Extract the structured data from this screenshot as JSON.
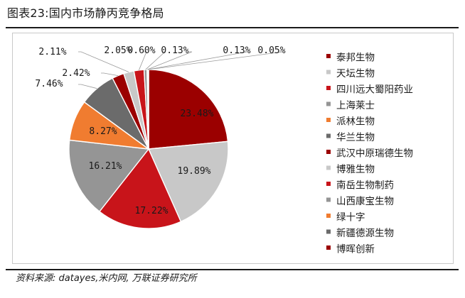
{
  "figure_title": "图表23:国内市场静丙竞争格局",
  "source_note": "资料来源: datayes,米内网, 万联证券研究所",
  "chart_data": {
    "type": "pie",
    "title": "",
    "legend_position": "right",
    "unit": "%",
    "slices": [
      {
        "name": "泰邦生物",
        "value": 23.48,
        "label": "23.48%",
        "color": "#9b0000"
      },
      {
        "name": "天坛生物",
        "value": 19.89,
        "label": "19.89%",
        "color": "#c8c8c8"
      },
      {
        "name": "四川远大蜀阳药业",
        "value": 17.22,
        "label": "17.22%",
        "color": "#c8141a"
      },
      {
        "name": "上海莱士",
        "value": 16.21,
        "label": "16.21%",
        "color": "#959595"
      },
      {
        "name": "派林生物",
        "value": 8.27,
        "label": "8.27%",
        "color": "#f07c30"
      },
      {
        "name": "华兰生物",
        "value": 7.46,
        "label": "7.46%",
        "color": "#6b6b6b"
      },
      {
        "name": "武汉中原瑞德生物",
        "value": 2.42,
        "label": "2.42%",
        "color": "#9b0000"
      },
      {
        "name": "博雅生物",
        "value": 2.11,
        "label": "2.11%",
        "color": "#c8c8c8"
      },
      {
        "name": "南岳生物制药",
        "value": 2.05,
        "label": "2.05%",
        "color": "#c8141a"
      },
      {
        "name": "山西康宝生物",
        "value": 0.6,
        "label": "0.60%",
        "color": "#959595"
      },
      {
        "name": "绿十字",
        "value": 0.13,
        "label": "0.13%",
        "color": "#f07c30"
      },
      {
        "name": "新疆德源生物",
        "value": 0.13,
        "label": "0.13%",
        "color": "#6b6b6b"
      },
      {
        "name": "博晖创新",
        "value": 0.05,
        "label": "0.05%",
        "color": "#9b0000"
      }
    ]
  }
}
